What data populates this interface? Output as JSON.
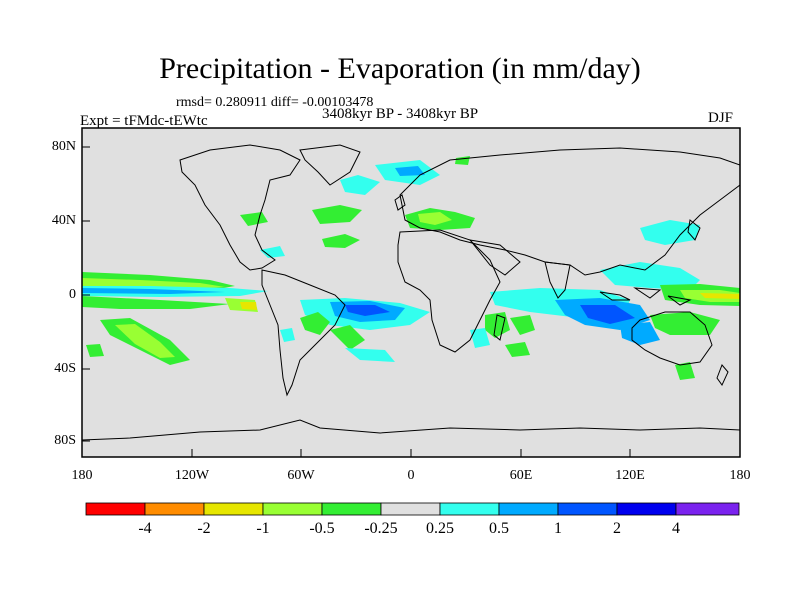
{
  "title": "Precipitation - Evaporation (in mm/day)",
  "stats": "rmsd= 0.280911 diff= -0.00103478",
  "period": "3408kyr BP - 3408kyr BP",
  "experiment": "Expt = tFMdc-tEWtc",
  "season": "DJF",
  "y_ticks": [
    "80N",
    "40N",
    "0",
    "40S",
    "80S"
  ],
  "x_ticks": [
    "180",
    "120W",
    "60W",
    "0",
    "60E",
    "120E",
    "180"
  ],
  "colorbar": {
    "colors": [
      "#ff0000",
      "#ff8c00",
      "#e6e600",
      "#99ff33",
      "#33ee33",
      "#e0e0e0",
      "#33ffee",
      "#00aaff",
      "#0055ff",
      "#0000ee",
      "#7a22ee"
    ],
    "labels": [
      "-4",
      "-2",
      "-1",
      "-0.5",
      "-0.25",
      "0.25",
      "0.5",
      "1",
      "2",
      "4"
    ]
  },
  "colors": {
    "ocean_background": "#e0e0e0",
    "coastline": "#000000",
    "frame": "#000000"
  }
}
